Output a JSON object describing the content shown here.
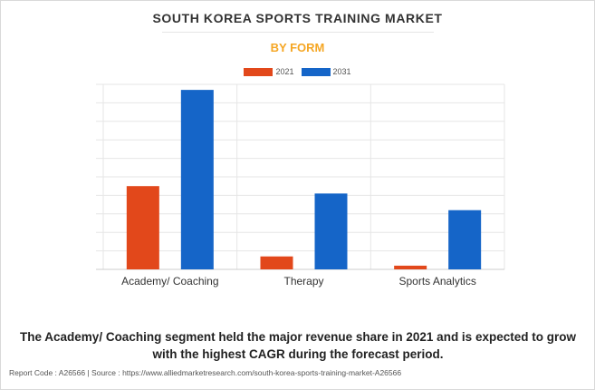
{
  "header": {
    "title": "SOUTH KOREA SPORTS TRAINING MARKET",
    "subtitle": "BY FORM"
  },
  "legend": [
    {
      "label": "2021",
      "color": "#e2481b"
    },
    {
      "label": "2031",
      "color": "#1565c8"
    }
  ],
  "chart_data": {
    "type": "bar",
    "title": "SOUTH KOREA SPORTS TRAINING MARKET",
    "subtitle": "BY FORM",
    "categories": [
      "Academy/ Coaching",
      "Therapy",
      "Sports Analytics"
    ],
    "series": [
      {
        "name": "2021",
        "color": "#e2481b",
        "values": [
          45,
          7,
          2
        ]
      },
      {
        "name": "2031",
        "color": "#1565c8",
        "values": [
          97,
          41,
          32
        ]
      }
    ],
    "ylim": [
      0,
      100
    ],
    "y_tick_count": 10,
    "y_tick_labels_shown": false,
    "grid": true,
    "legend_position": "top-center"
  },
  "footnote": "The Academy/ Coaching segment held the major revenue share in 2021 and is expected to grow with the highest CAGR during the forecast period.",
  "source": "Report Code : A26566  |  Source : https://www.alliedmarketresearch.com/south-korea-sports-training-market-A26566"
}
